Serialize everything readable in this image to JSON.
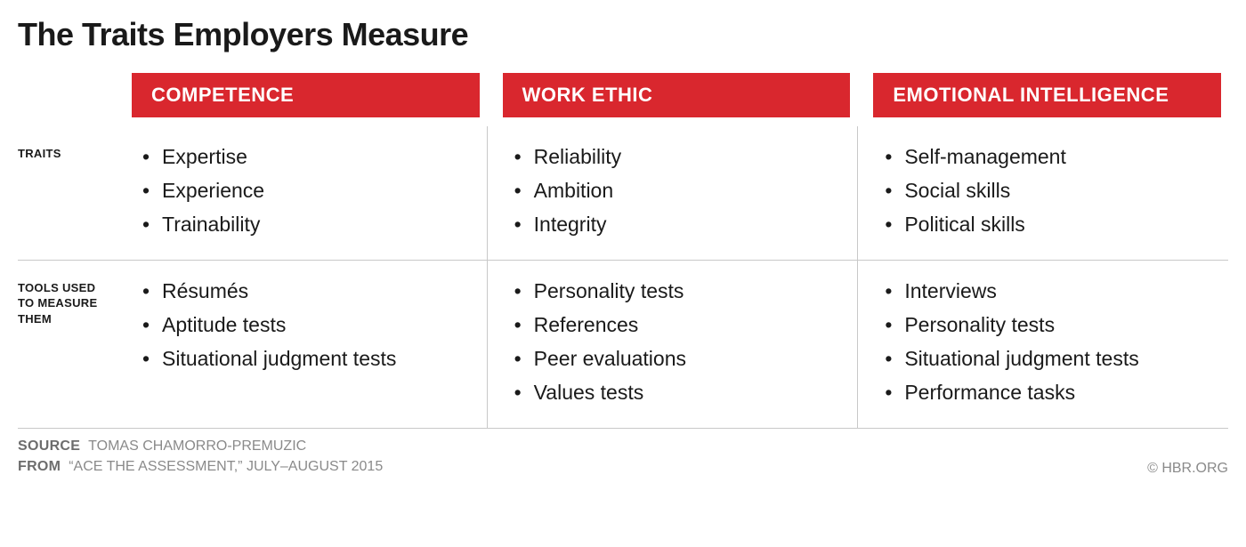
{
  "title": "The Traits Employers Measure",
  "row_labels": {
    "traits": "TRAITS",
    "tools": "TOOLS USED TO MEASURE THEM"
  },
  "columns": [
    {
      "header": "COMPETENCE",
      "traits": [
        "Expertise",
        "Experience",
        "Trainability"
      ],
      "tools": [
        "Résumés",
        "Aptitude tests",
        "Situational judgment tests"
      ]
    },
    {
      "header": "WORK ETHIC",
      "traits": [
        "Reliability",
        "Ambition",
        "Integrity"
      ],
      "tools": [
        "Personality tests",
        "References",
        "Peer evaluations",
        "Values tests"
      ]
    },
    {
      "header": "EMOTIONAL INTELLIGENCE",
      "traits": [
        "Self-management",
        "Social skills",
        "Political skills"
      ],
      "tools": [
        "Interviews",
        "Personality tests",
        "Situational judgment tests",
        "Performance tasks"
      ]
    }
  ],
  "footer": {
    "source_label": "SOURCE",
    "source_value": "TOMAS CHAMORRO-PREMUZIC",
    "from_label": "FROM",
    "from_value": "“ACE THE ASSESSMENT,” JULY–AUGUST 2015",
    "copyright": "© HBR.ORG"
  },
  "style": {
    "header_bg": "#d9272e",
    "header_fg": "#ffffff",
    "border_color": "#c8c8c8",
    "title_fontsize": 36,
    "body_fontsize": 23,
    "rowlabel_fontsize": 13
  }
}
